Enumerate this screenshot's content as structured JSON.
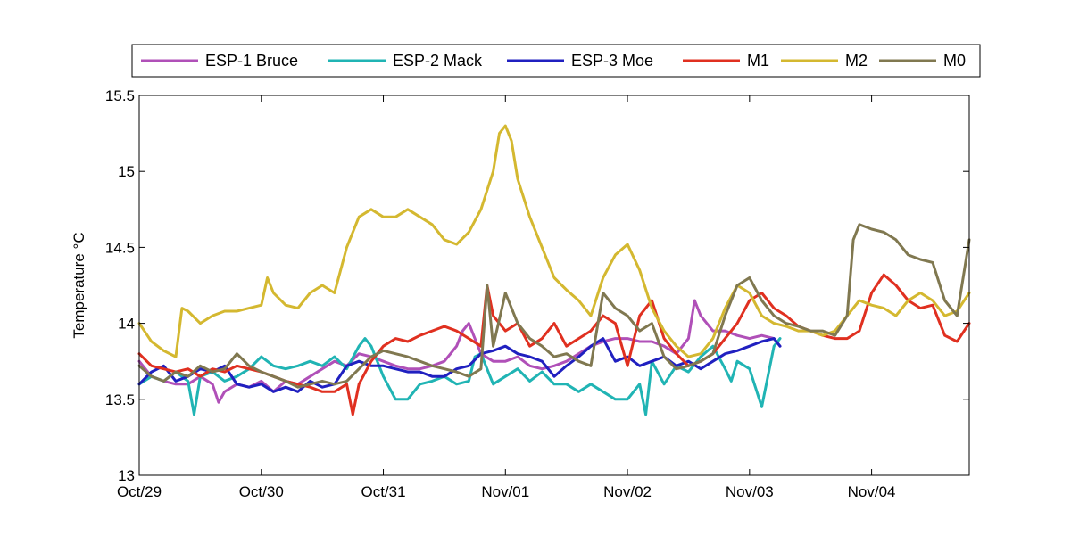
{
  "chart_data": {
    "type": "line",
    "ylabel": "Temperature °C",
    "ylim": [
      13,
      15.5
    ],
    "xlim": [
      0,
      6.8
    ],
    "yticks": [
      13,
      13.5,
      14,
      14.5,
      15,
      15.5
    ],
    "ytick_labels": [
      "13",
      "13.5",
      "14",
      "14.5",
      "15",
      "15.5"
    ],
    "xticks": [
      0,
      1,
      2,
      3,
      4,
      5,
      6
    ],
    "xtick_labels": [
      "Oct/29",
      "Oct/30",
      "Oct/31",
      "Nov/01",
      "Nov/02",
      "Nov/03",
      "Nov/04"
    ],
    "grid": false,
    "legend": "top, outside, horizontal",
    "series": [
      {
        "name": "ESP-1 Bruce",
        "color": "#b050b8",
        "x": [
          0.0,
          0.1,
          0.2,
          0.3,
          0.4,
          0.5,
          0.6,
          0.65,
          0.7,
          0.8,
          0.9,
          1.0,
          1.1,
          1.2,
          1.3,
          1.4,
          1.5,
          1.6,
          1.7,
          1.8,
          1.9,
          2.0,
          2.1,
          2.2,
          2.3,
          2.4,
          2.5,
          2.6,
          2.65,
          2.7,
          2.8,
          2.9,
          3.0,
          3.1,
          3.2,
          3.3,
          3.4,
          3.5,
          3.6,
          3.7,
          3.8,
          3.9,
          4.0,
          4.1,
          4.2,
          4.3,
          4.4,
          4.5,
          4.55,
          4.6,
          4.7,
          4.8,
          4.9,
          5.0,
          5.1,
          5.2,
          5.25
        ],
        "y": [
          13.75,
          13.65,
          13.62,
          13.6,
          13.6,
          13.65,
          13.6,
          13.48,
          13.55,
          13.6,
          13.58,
          13.62,
          13.55,
          13.62,
          13.6,
          13.65,
          13.7,
          13.75,
          13.72,
          13.8,
          13.78,
          13.75,
          13.72,
          13.7,
          13.7,
          13.72,
          13.75,
          13.85,
          13.95,
          14.0,
          13.8,
          13.75,
          13.75,
          13.78,
          13.72,
          13.7,
          13.72,
          13.75,
          13.8,
          13.85,
          13.88,
          13.9,
          13.9,
          13.88,
          13.88,
          13.85,
          13.8,
          13.9,
          14.15,
          14.05,
          13.95,
          13.95,
          13.92,
          13.9,
          13.92,
          13.9,
          13.85
        ]
      },
      {
        "name": "ESP-2 Mack",
        "color": "#20b4b4",
        "x": [
          0.0,
          0.1,
          0.2,
          0.3,
          0.4,
          0.45,
          0.5,
          0.6,
          0.7,
          0.8,
          0.9,
          1.0,
          1.1,
          1.2,
          1.3,
          1.4,
          1.5,
          1.6,
          1.7,
          1.8,
          1.85,
          1.9,
          2.0,
          2.1,
          2.2,
          2.3,
          2.4,
          2.5,
          2.6,
          2.7,
          2.75,
          2.8,
          2.9,
          3.0,
          3.1,
          3.2,
          3.3,
          3.4,
          3.5,
          3.6,
          3.7,
          3.8,
          3.9,
          4.0,
          4.1,
          4.15,
          4.2,
          4.3,
          4.4,
          4.5,
          4.6,
          4.7,
          4.8,
          4.85,
          4.9,
          5.0,
          5.1,
          5.2,
          5.25
        ],
        "y": [
          13.6,
          13.65,
          13.62,
          13.68,
          13.62,
          13.4,
          13.65,
          13.68,
          13.62,
          13.65,
          13.7,
          13.78,
          13.72,
          13.7,
          13.72,
          13.75,
          13.72,
          13.78,
          13.7,
          13.85,
          13.9,
          13.85,
          13.65,
          13.5,
          13.5,
          13.6,
          13.62,
          13.65,
          13.6,
          13.62,
          13.78,
          13.8,
          13.6,
          13.65,
          13.7,
          13.62,
          13.68,
          13.6,
          13.6,
          13.55,
          13.6,
          13.55,
          13.5,
          13.5,
          13.6,
          13.4,
          13.75,
          13.6,
          13.72,
          13.68,
          13.78,
          13.85,
          13.7,
          13.62,
          13.75,
          13.7,
          13.45,
          13.85,
          13.9
        ]
      },
      {
        "name": "ESP-3 Moe",
        "color": "#2020c0",
        "x": [
          0.0,
          0.1,
          0.2,
          0.3,
          0.4,
          0.5,
          0.6,
          0.7,
          0.8,
          0.9,
          1.0,
          1.1,
          1.2,
          1.3,
          1.4,
          1.5,
          1.6,
          1.7,
          1.8,
          1.9,
          2.0,
          2.1,
          2.2,
          2.3,
          2.4,
          2.5,
          2.6,
          2.7,
          2.8,
          2.9,
          3.0,
          3.1,
          3.2,
          3.3,
          3.4,
          3.5,
          3.6,
          3.7,
          3.8,
          3.9,
          4.0,
          4.1,
          4.2,
          4.3,
          4.4,
          4.5,
          4.6,
          4.7,
          4.8,
          4.9,
          5.0,
          5.1,
          5.2,
          5.25
        ],
        "y": [
          13.6,
          13.68,
          13.72,
          13.62,
          13.65,
          13.7,
          13.68,
          13.72,
          13.6,
          13.58,
          13.6,
          13.55,
          13.58,
          13.55,
          13.62,
          13.58,
          13.6,
          13.72,
          13.75,
          13.72,
          13.72,
          13.7,
          13.68,
          13.68,
          13.65,
          13.65,
          13.7,
          13.72,
          13.8,
          13.82,
          13.85,
          13.8,
          13.78,
          13.75,
          13.65,
          13.72,
          13.78,
          13.85,
          13.9,
          13.75,
          13.78,
          13.72,
          13.75,
          13.78,
          13.72,
          13.75,
          13.7,
          13.75,
          13.8,
          13.82,
          13.85,
          13.88,
          13.9,
          13.85
        ]
      },
      {
        "name": "M1",
        "color": "#e03020",
        "x": [
          0.0,
          0.1,
          0.2,
          0.3,
          0.4,
          0.5,
          0.6,
          0.7,
          0.8,
          0.9,
          1.0,
          1.1,
          1.2,
          1.3,
          1.4,
          1.5,
          1.6,
          1.7,
          1.75,
          1.8,
          1.9,
          2.0,
          2.1,
          2.2,
          2.3,
          2.4,
          2.5,
          2.6,
          2.7,
          2.8,
          2.85,
          2.9,
          3.0,
          3.1,
          3.2,
          3.3,
          3.4,
          3.5,
          3.6,
          3.7,
          3.8,
          3.9,
          4.0,
          4.1,
          4.2,
          4.3,
          4.4,
          4.5,
          4.6,
          4.7,
          4.8,
          4.9,
          5.0,
          5.1,
          5.2,
          5.3,
          5.4,
          5.5,
          5.6,
          5.7,
          5.8,
          5.9,
          6.0,
          6.1,
          6.2,
          6.3,
          6.4,
          6.5,
          6.6,
          6.7,
          6.8
        ],
        "y": [
          13.8,
          13.72,
          13.7,
          13.68,
          13.7,
          13.65,
          13.7,
          13.68,
          13.72,
          13.7,
          13.68,
          13.65,
          13.62,
          13.6,
          13.58,
          13.55,
          13.55,
          13.6,
          13.4,
          13.6,
          13.75,
          13.85,
          13.9,
          13.88,
          13.92,
          13.95,
          13.98,
          13.95,
          13.9,
          13.85,
          14.25,
          14.05,
          13.95,
          14.0,
          13.85,
          13.9,
          14.0,
          13.85,
          13.9,
          13.95,
          14.05,
          14.0,
          13.72,
          14.05,
          14.15,
          13.9,
          13.8,
          13.72,
          13.75,
          13.8,
          13.9,
          14.0,
          14.15,
          14.2,
          14.1,
          14.05,
          13.98,
          13.95,
          13.92,
          13.9,
          13.9,
          13.95,
          14.2,
          14.32,
          14.25,
          14.15,
          14.1,
          14.12,
          13.92,
          13.88,
          14.0
        ]
      },
      {
        "name": "M2",
        "color": "#d4b830",
        "x": [
          0.0,
          0.1,
          0.2,
          0.3,
          0.35,
          0.4,
          0.5,
          0.6,
          0.7,
          0.8,
          0.9,
          1.0,
          1.05,
          1.1,
          1.2,
          1.3,
          1.4,
          1.5,
          1.6,
          1.7,
          1.8,
          1.9,
          2.0,
          2.1,
          2.2,
          2.3,
          2.4,
          2.5,
          2.6,
          2.7,
          2.8,
          2.9,
          2.95,
          3.0,
          3.05,
          3.1,
          3.2,
          3.3,
          3.4,
          3.5,
          3.6,
          3.7,
          3.8,
          3.9,
          4.0,
          4.1,
          4.2,
          4.3,
          4.4,
          4.5,
          4.6,
          4.7,
          4.8,
          4.9,
          5.0,
          5.1,
          5.2,
          5.3,
          5.4,
          5.5,
          5.6,
          5.7,
          5.8,
          5.9,
          6.0,
          6.1,
          6.2,
          6.3,
          6.4,
          6.5,
          6.6,
          6.7,
          6.8
        ],
        "y": [
          14.0,
          13.88,
          13.82,
          13.78,
          14.1,
          14.08,
          14.0,
          14.05,
          14.08,
          14.08,
          14.1,
          14.12,
          14.3,
          14.2,
          14.12,
          14.1,
          14.2,
          14.25,
          14.2,
          14.5,
          14.7,
          14.75,
          14.7,
          14.7,
          14.75,
          14.7,
          14.65,
          14.55,
          14.52,
          14.6,
          14.75,
          15.0,
          15.25,
          15.3,
          15.2,
          14.95,
          14.7,
          14.5,
          14.3,
          14.22,
          14.15,
          14.05,
          14.3,
          14.45,
          14.52,
          14.35,
          14.1,
          13.95,
          13.85,
          13.78,
          13.8,
          13.9,
          14.1,
          14.25,
          14.2,
          14.05,
          14.0,
          13.98,
          13.95,
          13.95,
          13.92,
          13.95,
          14.05,
          14.15,
          14.12,
          14.1,
          14.05,
          14.15,
          14.2,
          14.15,
          14.05,
          14.08,
          14.2
        ]
      },
      {
        "name": "M0",
        "color": "#807850",
        "x": [
          0.0,
          0.1,
          0.2,
          0.3,
          0.4,
          0.5,
          0.6,
          0.7,
          0.8,
          0.9,
          1.0,
          1.1,
          1.2,
          1.3,
          1.4,
          1.5,
          1.6,
          1.7,
          1.8,
          1.9,
          2.0,
          2.1,
          2.2,
          2.3,
          2.4,
          2.5,
          2.6,
          2.7,
          2.8,
          2.85,
          2.9,
          3.0,
          3.1,
          3.2,
          3.3,
          3.4,
          3.5,
          3.6,
          3.7,
          3.8,
          3.9,
          4.0,
          4.1,
          4.2,
          4.3,
          4.4,
          4.5,
          4.6,
          4.7,
          4.8,
          4.9,
          5.0,
          5.1,
          5.2,
          5.3,
          5.4,
          5.5,
          5.6,
          5.7,
          5.8,
          5.85,
          5.9,
          6.0,
          6.1,
          6.2,
          6.3,
          6.4,
          6.5,
          6.6,
          6.7,
          6.8
        ],
        "y": [
          13.72,
          13.65,
          13.62,
          13.68,
          13.65,
          13.72,
          13.68,
          13.7,
          13.8,
          13.72,
          13.68,
          13.65,
          13.62,
          13.58,
          13.6,
          13.62,
          13.6,
          13.62,
          13.7,
          13.78,
          13.82,
          13.8,
          13.78,
          13.75,
          13.72,
          13.7,
          13.68,
          13.65,
          13.7,
          14.25,
          13.85,
          14.2,
          14.0,
          13.9,
          13.85,
          13.78,
          13.8,
          13.75,
          13.72,
          14.2,
          14.1,
          14.05,
          13.95,
          14.0,
          13.78,
          13.7,
          13.72,
          13.75,
          13.8,
          14.05,
          14.25,
          14.3,
          14.15,
          14.05,
          14.0,
          13.98,
          13.95,
          13.95,
          13.92,
          14.05,
          14.55,
          14.65,
          14.62,
          14.6,
          14.55,
          14.45,
          14.42,
          14.4,
          14.15,
          14.05,
          14.55
        ]
      }
    ]
  }
}
